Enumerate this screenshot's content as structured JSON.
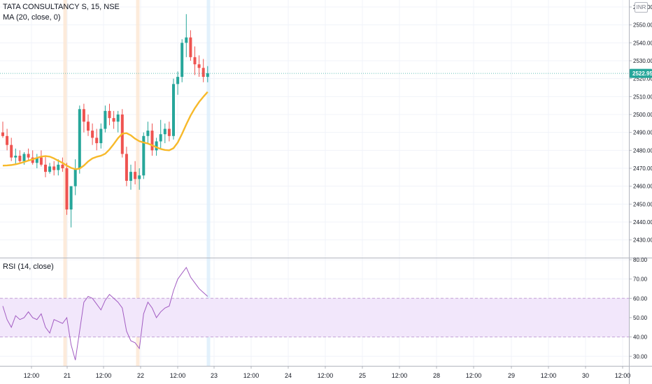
{
  "legend": {
    "symbol": "TATA CONSULTANCY S, 15, NSE",
    "ma": "MA (20, close, 0)",
    "rsi": "RSI (14, close)"
  },
  "currency": "INR",
  "colors": {
    "up": "#26a69a",
    "down": "#ef5350",
    "ma": "#f7b92a",
    "rsi": "#a25cc2",
    "rsi_band": "#f2e7fb",
    "session_marker": "#fce6d2",
    "last_price_bg": "#26a69a"
  },
  "chart_data": [
    {
      "type": "candlestick",
      "title": "TATA CONSULTANCY S, 15, NSE",
      "ylim": [
        2425,
        2565
      ],
      "yticks": [
        2430,
        2440,
        2450,
        2460,
        2470,
        2480,
        2490,
        2500,
        2510,
        2520,
        2530,
        2540,
        2550,
        2560
      ],
      "ytick_labels": [
        "2430.00",
        "2440.00",
        "2450.00",
        "2460.00",
        "2470.00",
        "2480.00",
        "2490.00",
        "2500.00",
        "2510.00",
        "2520.00",
        "2530.00",
        "2540.00",
        "2550.00",
        "2560.00"
      ],
      "xtick_labels": [
        "12:00",
        "21",
        "12:00",
        "22",
        "12:00",
        "23",
        "12:00",
        "24",
        "12:00",
        "25",
        "12:00",
        "28",
        "12:00",
        "29",
        "12:00",
        "30",
        "12:00"
      ],
      "last_price": 2522.95,
      "last_price_label": "2522.95",
      "grid": true,
      "legend": "top-left",
      "series": [
        {
          "name": "TATA CONSULTANCY S",
          "candles": [
            [
              2490,
              2496,
              2487,
              2488
            ],
            [
              2488,
              2492,
              2480,
              2483
            ],
            [
              2483,
              2487,
              2474,
              2476
            ],
            [
              2476,
              2481,
              2472,
              2477
            ],
            [
              2477,
              2480,
              2473,
              2474
            ],
            [
              2474,
              2479,
              2472,
              2478
            ],
            [
              2478,
              2481,
              2474,
              2476
            ],
            [
              2476,
              2480,
              2472,
              2473
            ],
            [
              2473,
              2478,
              2470,
              2476
            ],
            [
              2476,
              2480,
              2471,
              2472
            ],
            [
              2472,
              2477,
              2465,
              2468
            ],
            [
              2468,
              2473,
              2467,
              2471
            ],
            [
              2471,
              2474,
              2466,
              2469
            ],
            [
              2469,
              2475,
              2466,
              2472
            ],
            [
              2472,
              2476,
              2468,
              2470
            ],
            [
              2470,
              2473,
              2444,
              2447
            ],
            [
              2447,
              2460,
              2437,
              2460
            ],
            [
              2460,
              2475,
              2455,
              2470
            ],
            [
              2470,
              2505,
              2467,
              2503
            ],
            [
              2503,
              2506,
              2490,
              2496
            ],
            [
              2496,
              2500,
              2488,
              2491
            ],
            [
              2491,
              2495,
              2483,
              2487
            ],
            [
              2487,
              2492,
              2480,
              2484
            ],
            [
              2484,
              2495,
              2481,
              2492
            ],
            [
              2492,
              2505,
              2490,
              2502
            ],
            [
              2502,
              2506,
              2494,
              2498
            ],
            [
              2498,
              2502,
              2492,
              2496
            ],
            [
              2496,
              2502,
              2490,
              2500
            ],
            [
              2500,
              2503,
              2476,
              2478
            ],
            [
              2478,
              2482,
              2460,
              2463
            ],
            [
              2463,
              2472,
              2458,
              2468
            ],
            [
              2468,
              2474,
              2461,
              2464
            ],
            [
              2464,
              2470,
              2458,
              2466
            ],
            [
              2466,
              2490,
              2464,
              2488
            ],
            [
              2488,
              2496,
              2484,
              2491
            ],
            [
              2491,
              2495,
              2477,
              2480
            ],
            [
              2480,
              2487,
              2477,
              2485
            ],
            [
              2485,
              2497,
              2481,
              2489
            ],
            [
              2489,
              2495,
              2484,
              2492
            ],
            [
              2492,
              2496,
              2485,
              2488
            ],
            [
              2488,
              2520,
              2486,
              2517
            ],
            [
              2517,
              2524,
              2511,
              2521
            ],
            [
              2521,
              2542,
              2518,
              2540
            ],
            [
              2540,
              2556,
              2532,
              2543
            ],
            [
              2543,
              2547,
              2530,
              2532
            ],
            [
              2532,
              2538,
              2522,
              2528
            ],
            [
              2528,
              2533,
              2521,
              2526
            ],
            [
              2526,
              2531,
              2518,
              2521
            ],
            [
              2521,
              2527,
              2518,
              2523
            ]
          ]
        },
        {
          "name": "MA (20, close, 0)",
          "values": [
            2471.5,
            2471.6,
            2471.8,
            2472.2,
            2472.8,
            2473.5,
            2474.3,
            2475,
            2475.8,
            2476.5,
            2476.8,
            2476.5,
            2475.5,
            2474.2,
            2473,
            2471.5,
            2470.2,
            2469.5,
            2469.8,
            2471.5,
            2473.8,
            2475.5,
            2476.4,
            2477,
            2478.1,
            2480.5,
            2483.5,
            2486.8,
            2489.3,
            2489.6,
            2488.4,
            2486.5,
            2485.1,
            2484.4,
            2483.8,
            2482.8,
            2481.7,
            2480.8,
            2480.2,
            2480,
            2481.2,
            2484.4,
            2489.2,
            2494.5,
            2499.4,
            2503.5,
            2507,
            2509.9,
            2512.6
          ]
        }
      ]
    },
    {
      "type": "line",
      "title": "RSI (14, close)",
      "ylim": [
        24,
        80
      ],
      "yticks": [
        30,
        40,
        50,
        60,
        70,
        80
      ],
      "ytick_labels": [
        "30.00",
        "40.00",
        "50.00",
        "60.00",
        "70.00",
        "80.00"
      ],
      "band": [
        40,
        60
      ],
      "series": [
        {
          "name": "RSI (14, close)",
          "values": [
            56,
            49,
            45,
            51,
            49,
            50,
            53,
            50,
            49,
            52,
            45,
            42,
            49,
            48,
            47,
            50,
            36,
            28,
            43,
            58,
            61,
            60,
            57,
            54,
            59,
            62,
            60,
            58,
            55,
            43,
            38,
            37,
            34,
            52,
            58,
            55,
            50,
            53,
            55,
            56,
            64,
            70,
            73,
            76,
            71,
            68,
            65,
            63,
            61
          ]
        }
      ]
    }
  ]
}
